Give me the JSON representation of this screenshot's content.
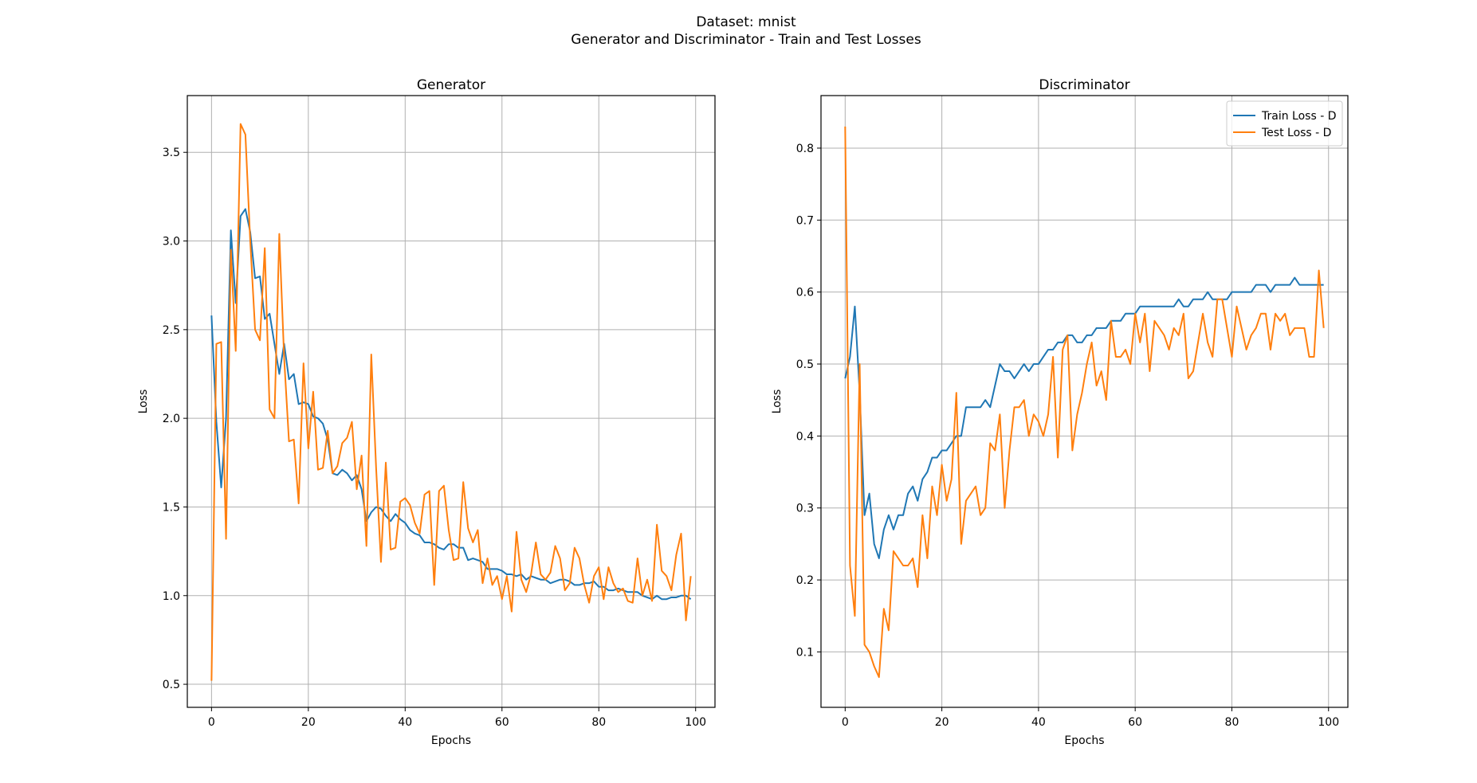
{
  "figure": {
    "suptitle_line1": "Dataset: mnist",
    "suptitle_line2": "Generator and Discriminator - Train and Test Losses"
  },
  "colors": {
    "train": "#1f77b4",
    "test": "#ff7f0e",
    "grid": "#b0b0b0"
  },
  "chart_data": [
    {
      "type": "line",
      "title": "Generator",
      "xlabel": "Epochs",
      "ylabel": "Loss",
      "xlim": [
        -5,
        104
      ],
      "ylim": [
        0.37,
        3.82
      ],
      "xticks": [
        0,
        20,
        40,
        60,
        80,
        100
      ],
      "yticks": [
        0.5,
        1.0,
        1.5,
        2.0,
        2.5,
        3.0,
        3.5
      ],
      "grid": true,
      "series": [
        {
          "key": "train",
          "values": [
            2.58,
            1.98,
            1.61,
            2.0,
            3.06,
            2.65,
            3.14,
            3.18,
            3.05,
            2.79,
            2.8,
            2.56,
            2.59,
            2.42,
            2.25,
            2.42,
            2.22,
            2.25,
            2.08,
            2.09,
            2.08,
            2.01,
            2.0,
            1.97,
            1.88,
            1.69,
            1.68,
            1.71,
            1.69,
            1.65,
            1.68,
            1.6,
            1.42,
            1.47,
            1.5,
            1.49,
            1.45,
            1.42,
            1.46,
            1.43,
            1.41,
            1.37,
            1.35,
            1.34,
            1.3,
            1.3,
            1.29,
            1.27,
            1.26,
            1.29,
            1.29,
            1.27,
            1.27,
            1.2,
            1.21,
            1.2,
            1.19,
            1.15,
            1.15,
            1.15,
            1.14,
            1.12,
            1.12,
            1.11,
            1.12,
            1.09,
            1.11,
            1.1,
            1.09,
            1.09,
            1.07,
            1.08,
            1.09,
            1.09,
            1.08,
            1.06,
            1.06,
            1.07,
            1.07,
            1.08,
            1.05,
            1.05,
            1.03,
            1.03,
            1.04,
            1.03,
            1.02,
            1.02,
            1.02,
            1.0,
            0.99,
            0.98,
            1.0,
            0.98,
            0.98,
            0.99,
            0.99,
            1.0,
            1.0,
            0.98
          ]
        },
        {
          "key": "test",
          "values": [
            0.52,
            2.42,
            2.43,
            1.32,
            2.95,
            2.38,
            3.66,
            3.6,
            3.0,
            2.5,
            2.44,
            2.96,
            2.05,
            2.0,
            3.04,
            2.34,
            1.87,
            1.88,
            1.52,
            2.31,
            1.83,
            2.15,
            1.71,
            1.72,
            1.93,
            1.69,
            1.73,
            1.86,
            1.89,
            1.98,
            1.6,
            1.79,
            1.28,
            2.36,
            1.72,
            1.19,
            1.75,
            1.26,
            1.27,
            1.53,
            1.55,
            1.51,
            1.41,
            1.35,
            1.57,
            1.59,
            1.06,
            1.59,
            1.62,
            1.37,
            1.2,
            1.21,
            1.64,
            1.38,
            1.3,
            1.37,
            1.07,
            1.21,
            1.06,
            1.11,
            0.98,
            1.11,
            0.91,
            1.36,
            1.09,
            1.02,
            1.12,
            1.3,
            1.12,
            1.09,
            1.13,
            1.28,
            1.21,
            1.03,
            1.07,
            1.27,
            1.21,
            1.06,
            0.96,
            1.11,
            1.16,
            0.98,
            1.16,
            1.07,
            1.02,
            1.04,
            0.97,
            0.96,
            1.21,
            1.0,
            1.09,
            0.97,
            1.4,
            1.14,
            1.11,
            1.03,
            1.23,
            1.35,
            0.86,
            1.11
          ]
        }
      ]
    },
    {
      "type": "line",
      "title": "Discriminator",
      "xlabel": "Epochs",
      "ylabel": "Loss",
      "xlim": [
        -5,
        104
      ],
      "ylim": [
        0.023,
        0.873
      ],
      "xticks": [
        0,
        20,
        40,
        60,
        80,
        100
      ],
      "yticks": [
        0.1,
        0.2,
        0.3,
        0.4,
        0.5,
        0.6,
        0.7,
        0.8
      ],
      "grid": true,
      "legend": {
        "position": "top-right",
        "entries": [
          "Train Loss - D",
          "Test Loss - D"
        ]
      },
      "series": [
        {
          "key": "train",
          "name": "Train Loss - D",
          "values": [
            0.48,
            0.51,
            0.58,
            0.46,
            0.29,
            0.32,
            0.25,
            0.23,
            0.27,
            0.29,
            0.27,
            0.29,
            0.29,
            0.32,
            0.33,
            0.31,
            0.34,
            0.35,
            0.37,
            0.37,
            0.38,
            0.38,
            0.39,
            0.4,
            0.4,
            0.44,
            0.44,
            0.44,
            0.44,
            0.45,
            0.44,
            0.47,
            0.5,
            0.49,
            0.49,
            0.48,
            0.49,
            0.5,
            0.49,
            0.5,
            0.5,
            0.51,
            0.52,
            0.52,
            0.53,
            0.53,
            0.54,
            0.54,
            0.53,
            0.53,
            0.54,
            0.54,
            0.55,
            0.55,
            0.55,
            0.56,
            0.56,
            0.56,
            0.57,
            0.57,
            0.57,
            0.58,
            0.58,
            0.58,
            0.58,
            0.58,
            0.58,
            0.58,
            0.58,
            0.59,
            0.58,
            0.58,
            0.59,
            0.59,
            0.59,
            0.6,
            0.59,
            0.59,
            0.59,
            0.59,
            0.6,
            0.6,
            0.6,
            0.6,
            0.6,
            0.61,
            0.61,
            0.61,
            0.6,
            0.61,
            0.61,
            0.61,
            0.61,
            0.62,
            0.61,
            0.61,
            0.61,
            0.61,
            0.61,
            0.61
          ]
        },
        {
          "key": "test",
          "name": "Test Loss - D",
          "values": [
            0.83,
            0.22,
            0.15,
            0.5,
            0.11,
            0.1,
            0.08,
            0.065,
            0.16,
            0.13,
            0.24,
            0.23,
            0.22,
            0.22,
            0.23,
            0.19,
            0.29,
            0.23,
            0.33,
            0.29,
            0.36,
            0.31,
            0.34,
            0.46,
            0.25,
            0.31,
            0.32,
            0.33,
            0.29,
            0.3,
            0.39,
            0.38,
            0.43,
            0.3,
            0.38,
            0.44,
            0.44,
            0.45,
            0.4,
            0.43,
            0.42,
            0.4,
            0.43,
            0.51,
            0.37,
            0.52,
            0.54,
            0.38,
            0.43,
            0.46,
            0.5,
            0.53,
            0.47,
            0.49,
            0.45,
            0.56,
            0.51,
            0.51,
            0.52,
            0.5,
            0.57,
            0.53,
            0.57,
            0.49,
            0.56,
            0.55,
            0.54,
            0.52,
            0.55,
            0.54,
            0.57,
            0.48,
            0.49,
            0.53,
            0.57,
            0.53,
            0.51,
            0.59,
            0.59,
            0.55,
            0.51,
            0.58,
            0.55,
            0.52,
            0.54,
            0.55,
            0.57,
            0.57,
            0.52,
            0.57,
            0.56,
            0.57,
            0.54,
            0.55,
            0.55,
            0.55,
            0.51,
            0.51,
            0.63,
            0.55
          ]
        }
      ]
    }
  ]
}
